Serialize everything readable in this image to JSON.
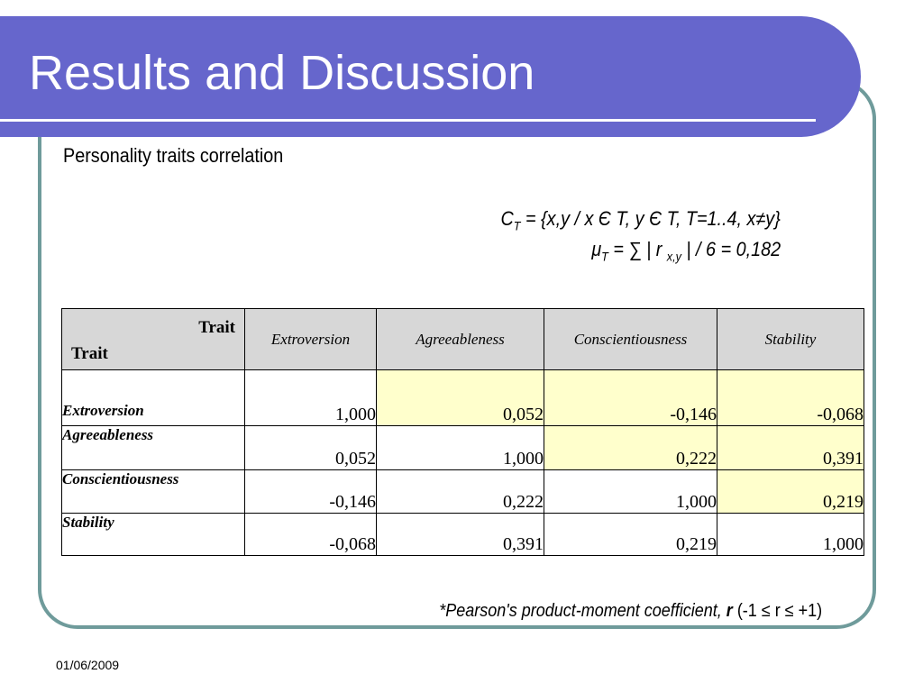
{
  "slide": {
    "title": "Results and Discussion",
    "subtitle": "Personality traits correlation",
    "date": "01/06/2009"
  },
  "formula": {
    "line1": {
      "prefix": "C",
      "sub": "T",
      "rest": " = {x,y / x Є T, y Є T, T=1..4, x≠y}"
    },
    "line2": {
      "prefix": "μ",
      "sub": "T",
      "mid": " = ∑ | r ",
      "sub2": "x,y",
      "rest": " |  / 6 = 0,182"
    }
  },
  "table": {
    "corner_top": "Trait",
    "corner_bottom": "Trait",
    "columns": [
      "Extroversion",
      "Agreeableness",
      "Conscientiousness",
      "Stability"
    ],
    "rows": [
      {
        "label": "Extroversion",
        "values": [
          "1,000",
          "0,052",
          "-0,146",
          "-0,068"
        ]
      },
      {
        "label": "Agreeableness",
        "values": [
          "0,052",
          "1,000",
          "0,222",
          "0,391"
        ]
      },
      {
        "label": "Conscientiousness",
        "values": [
          "-0,146",
          "0,222",
          "1,000",
          "0,219"
        ]
      },
      {
        "label": "Stability",
        "values": [
          "-0,068",
          "0,391",
          "0,219",
          "1,000"
        ]
      }
    ],
    "highlight_color": "#ffffcc",
    "header_color": "#d7d7d7"
  },
  "footnote": {
    "main": "*Pearson's product-moment coefficient, ",
    "r": "r",
    "range": " (-1 ≤ r ≤ +1)"
  },
  "colors": {
    "title_bar": "#6666cc",
    "frame": "#6f9b9b"
  }
}
